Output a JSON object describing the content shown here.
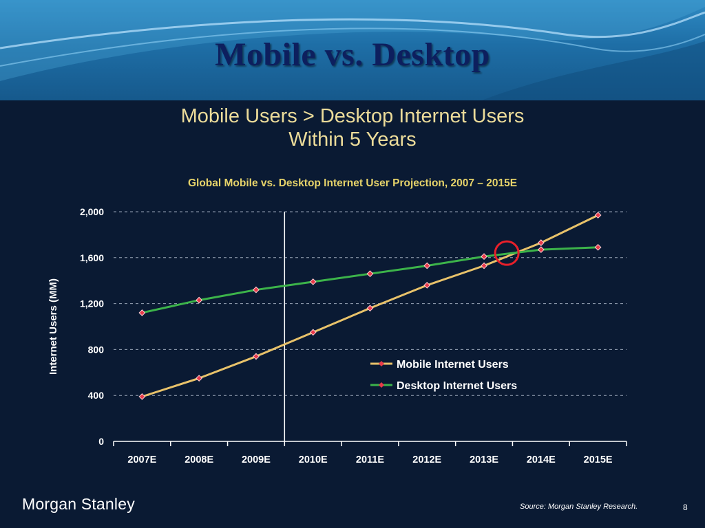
{
  "slide": {
    "title": "Mobile vs. Desktop",
    "headline_line1": "Mobile Users > Desktop Internet Users",
    "headline_line2": "Within 5 Years",
    "brand": "Morgan Stanley",
    "source": "Source: Morgan Stanley Research.",
    "page_number": "8"
  },
  "colors": {
    "header_bg": "#1e6ea6",
    "slide_bg": "#0a1a33",
    "title": "#0d1f5e",
    "headline": "#ecdc9a",
    "chart_title": "#e6d36a",
    "mobile_line": "#e8c26a",
    "desktop_line": "#3cb34a",
    "marker": "#e83a4a",
    "highlight_circle": "#e8202a"
  },
  "chart_data": {
    "type": "line",
    "title": "Global Mobile vs. Desktop Internet User Projection, 2007 – 2015E",
    "xlabel": "",
    "ylabel": "Internet Users (MM)",
    "categories": [
      "2007E",
      "2008E",
      "2009E",
      "2010E",
      "2011E",
      "2012E",
      "2013E",
      "2014E",
      "2015E"
    ],
    "ylim": [
      0,
      2000
    ],
    "yticks": [
      "0",
      "400",
      "800",
      "1,200",
      "1,600",
      "2,000"
    ],
    "grid": true,
    "legend": "right",
    "series": [
      {
        "name": "Mobile Internet Users",
        "x": [
          2007.0,
          2008.0,
          2009.0,
          2010.0,
          2011.0,
          2012.0,
          2013.0,
          2014.0,
          2015.0
        ],
        "values": [
          390,
          550,
          740,
          950,
          1160,
          1360,
          1530,
          1730,
          1970
        ]
      },
      {
        "name": "Desktop Internet Users",
        "x": [
          2007.0,
          2008.0,
          2009.0,
          2010.0,
          2011.0,
          2012.0,
          2013.0,
          2014.0,
          2015.0
        ],
        "values": [
          1120,
          1230,
          1320,
          1390,
          1460,
          1530,
          1610,
          1670,
          1690
        ]
      }
    ],
    "annotations": {
      "divider_after": "2009E",
      "crossover_circle": {
        "x": 2013.4,
        "y": 1640
      }
    }
  }
}
